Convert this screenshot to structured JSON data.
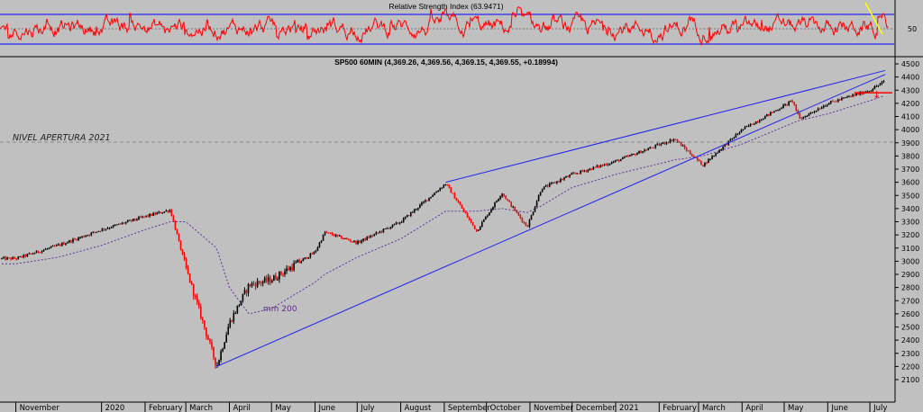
{
  "colors": {
    "background": "#c0c0c0",
    "rsi_line": "#ff0000",
    "rsi_bands": "#0000ff",
    "price": "#000000",
    "down_candle": "#ff0000",
    "mm200": "#663399",
    "trendline": "#2222ee",
    "nivel": "#888888",
    "arrow_yellow": "#ffff00",
    "support_red": "#ff0000"
  },
  "rsi_panel": {
    "title": "Relative Strength Index (63.9471)",
    "axis_label": "50",
    "value": 63.9471,
    "upper_band": 70,
    "lower_band": 30
  },
  "price_panel": {
    "title": "SP500 60MIN (4,369.26, 4,369.56, 4,369.15, 4,369.55, +0.18994)",
    "nivel_label": "NIVEL APERTURA 2021",
    "mm_label": "mm 200"
  },
  "x_axis": {
    "months": [
      "November",
      "2020",
      "February",
      "March",
      "April",
      "May",
      "June",
      "July",
      "August",
      "September",
      "October",
      "November",
      "December",
      "2021",
      "February",
      "March",
      "April",
      "May",
      "June",
      "July"
    ]
  },
  "chart_data": {
    "type": "line",
    "title": "SP500 60MIN",
    "ylim": [
      2100,
      4500
    ],
    "yticks": [
      2100,
      2200,
      2300,
      2400,
      2500,
      2600,
      2700,
      2800,
      2900,
      3000,
      3100,
      3200,
      3300,
      3400,
      3500,
      3600,
      3700,
      3800,
      3900,
      4000,
      4100,
      4200,
      4300,
      4400,
      4500
    ],
    "x": [
      "2019-11-01",
      "2019-12-01",
      "2020-01-01",
      "2020-02-01",
      "2020-02-19",
      "2020-03-01",
      "2020-03-23",
      "2020-04-01",
      "2020-04-15",
      "2020-05-01",
      "2020-06-01",
      "2020-06-08",
      "2020-07-01",
      "2020-08-01",
      "2020-09-02",
      "2020-09-24",
      "2020-10-12",
      "2020-10-30",
      "2020-11-09",
      "2020-12-01",
      "2021-01-01",
      "2021-02-12",
      "2021-03-04",
      "2021-04-01",
      "2021-05-07",
      "2021-05-12",
      "2021-06-01",
      "2021-07-01",
      "2021-07-12"
    ],
    "series": [
      {
        "values": [
          3020,
          3120,
          3240,
          3340,
          3390,
          2950,
          2200,
          2530,
          2820,
          2860,
          3070,
          3220,
          3140,
          3300,
          3590,
          3230,
          3520,
          3260,
          3550,
          3660,
          3760,
          3930,
          3730,
          4000,
          4220,
          4080,
          4200,
          4300,
          4370
        ]
      },
      {
        "values": [
          2980,
          3030,
          3120,
          3240,
          3300,
          3300,
          3100,
          2800,
          2600,
          2640,
          2840,
          2900,
          3030,
          3170,
          3380,
          3380,
          3400,
          3370,
          3420,
          3560,
          3660,
          3770,
          3800,
          3890,
          4050,
          4070,
          4120,
          4220,
          4260
        ]
      }
    ],
    "rsi_series": {
      "name": "Relative Strength Index",
      "last": 63.9471,
      "bands": [
        30,
        70
      ],
      "axis_ticks": [
        50
      ]
    },
    "annotations": [
      {
        "type": "trendline",
        "from": [
          "2020-03-23",
          2200
        ],
        "to": [
          "2021-07-12",
          4420
        ]
      },
      {
        "type": "trendline",
        "from": [
          "2020-09-02",
          3600
        ],
        "to": [
          "2021-07-12",
          4450
        ]
      },
      {
        "type": "horizontal",
        "value": 3750,
        "label": "NIVEL APERTURA 2021"
      },
      {
        "type": "horizontal",
        "value": 4280,
        "from": "2021-06-20"
      },
      {
        "type": "label",
        "text": "mm 200",
        "at": [
          "2020-04-25",
          2620
        ]
      }
    ]
  }
}
